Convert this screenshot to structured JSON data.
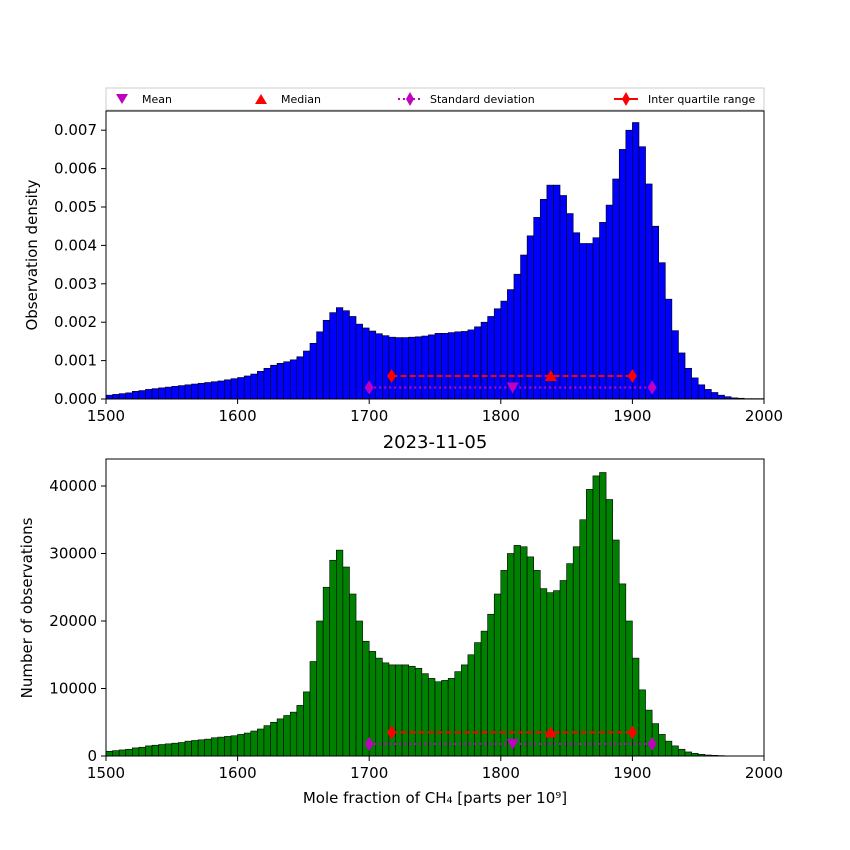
{
  "chart_data": [
    {
      "type": "bar",
      "panel": "top",
      "ylabel": "Observation density",
      "xlim": [
        1500,
        2000
      ],
      "ylim": [
        0,
        0.0075
      ],
      "xticks": [
        "1500",
        "1600",
        "1700",
        "1800",
        "1900",
        "2000"
      ],
      "yticks": [
        "0.000",
        "0.001",
        "0.002",
        "0.003",
        "0.004",
        "0.005",
        "0.006",
        "0.007"
      ],
      "bar_color": "#0000ff",
      "bin_start": 1500,
      "bin_width": 5,
      "values": [
        0.0001,
        0.00012,
        0.00014,
        0.00016,
        0.0002,
        0.00022,
        0.00025,
        0.00027,
        0.00029,
        0.00031,
        0.00033,
        0.00035,
        0.00037,
        0.00039,
        0.00041,
        0.00043,
        0.00045,
        0.00047,
        0.0005,
        0.00053,
        0.00056,
        0.0006,
        0.00065,
        0.00072,
        0.0008,
        0.00088,
        0.00093,
        0.00097,
        0.00102,
        0.0011,
        0.00125,
        0.00145,
        0.00175,
        0.00205,
        0.00225,
        0.00238,
        0.0023,
        0.00215,
        0.00195,
        0.00185,
        0.00177,
        0.0017,
        0.00165,
        0.00161,
        0.0016,
        0.0016,
        0.00161,
        0.00162,
        0.00164,
        0.00167,
        0.00171,
        0.00171,
        0.00173,
        0.00175,
        0.00176,
        0.0018,
        0.00188,
        0.002,
        0.00215,
        0.00235,
        0.00255,
        0.00285,
        0.00325,
        0.00375,
        0.00425,
        0.00473,
        0.0052,
        0.00557,
        0.00557,
        0.0053,
        0.00483,
        0.00433,
        0.00405,
        0.00405,
        0.0042,
        0.0046,
        0.00505,
        0.00573,
        0.0065,
        0.007,
        0.0072,
        0.00657,
        0.0056,
        0.0045,
        0.00355,
        0.0026,
        0.00178,
        0.0012,
        0.0008,
        0.00055,
        0.00037,
        0.00025,
        0.00017,
        0.0001,
        6e-05,
        3e-05,
        2e-05,
        1e-05,
        1e-05,
        1e-05
      ],
      "markers": {
        "mean": {
          "x": 1809,
          "y": 0.0003
        },
        "median": {
          "x": 1838,
          "y": 0.0006
        },
        "std_range": [
          1700,
          1915
        ],
        "std_y": 0.0003,
        "iqr_range": [
          1717,
          1900
        ],
        "iqr_y": 0.0006
      }
    },
    {
      "type": "bar",
      "panel": "bottom",
      "title": "2023-11-05",
      "xlabel": "Mole fraction of CH₄ [parts per 10⁹]",
      "ylabel": "Number of observations",
      "xlim": [
        1500,
        2000
      ],
      "ylim": [
        0,
        44000
      ],
      "xticks": [
        "1500",
        "1600",
        "1700",
        "1800",
        "1900",
        "2000"
      ],
      "yticks": [
        "0",
        "10000",
        "20000",
        "30000",
        "40000"
      ],
      "bar_color": "#008000",
      "bin_start": 1500,
      "bin_width": 5,
      "values": [
        700,
        800,
        900,
        1000,
        1200,
        1300,
        1500,
        1600,
        1700,
        1800,
        1900,
        2000,
        2200,
        2300,
        2400,
        2500,
        2700,
        2800,
        2900,
        3000,
        3200,
        3400,
        3700,
        4000,
        4500,
        5000,
        5500,
        6000,
        6500,
        7500,
        9500,
        14000,
        20000,
        25000,
        29000,
        30500,
        28000,
        24000,
        20000,
        17000,
        15500,
        14500,
        13800,
        13500,
        13500,
        13500,
        13300,
        13000,
        12200,
        11500,
        11000,
        11200,
        11500,
        12500,
        13500,
        15000,
        16800,
        18500,
        21000,
        24000,
        27500,
        30000,
        31200,
        31000,
        29500,
        27500,
        24800,
        24200,
        24500,
        26000,
        28500,
        31000,
        35000,
        39500,
        41500,
        42000,
        38000,
        32000,
        25500,
        20000,
        14500,
        9800,
        6800,
        4800,
        3200,
        2200,
        1500,
        1000,
        600,
        400,
        250,
        150,
        100,
        60,
        30,
        20,
        10,
        5,
        2,
        1
      ],
      "markers": {
        "mean": {
          "x": 1809,
          "y": 1800
        },
        "median": {
          "x": 1838,
          "y": 3500
        },
        "std_range": [
          1700,
          1915
        ],
        "std_y": 1800,
        "iqr_range": [
          1717,
          1900
        ],
        "iqr_y": 3500
      }
    }
  ],
  "legend": {
    "placement": "top",
    "entries": [
      {
        "label": "Mean",
        "marker": "triangle-down",
        "color": "#bf00bf"
      },
      {
        "label": "Median",
        "marker": "triangle-up",
        "color": "#ff0000"
      },
      {
        "label": "Standard deviation",
        "marker": "diamond-dotted-line",
        "color": "#bf00bf"
      },
      {
        "label": "Inter quartile range",
        "marker": "diamond-line",
        "color": "#ff0000"
      }
    ]
  }
}
